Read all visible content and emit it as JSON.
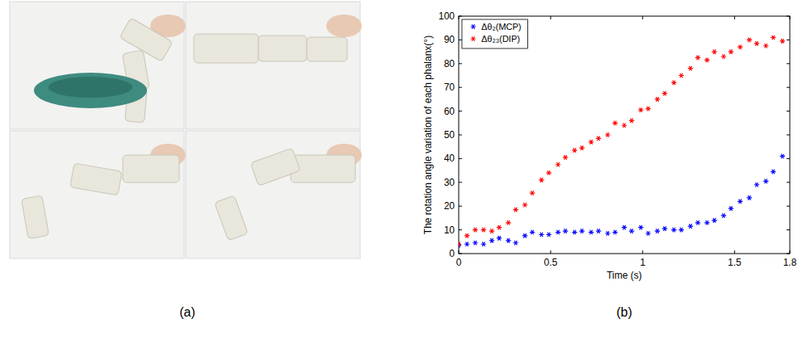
{
  "panel_labels": [
    "(a)",
    "(b)"
  ],
  "chart_data": {
    "type": "scatter",
    "x_label": "Time (s)",
    "y_label": "The rotation angle variation of each phalanx(°)",
    "x": [
      0,
      0.045,
      0.09,
      0.135,
      0.18,
      0.22,
      0.27,
      0.31,
      0.36,
      0.4,
      0.45,
      0.49,
      0.54,
      0.58,
      0.63,
      0.67,
      0.72,
      0.76,
      0.81,
      0.85,
      0.9,
      0.94,
      0.99,
      1.03,
      1.08,
      1.12,
      1.17,
      1.21,
      1.26,
      1.3,
      1.35,
      1.39,
      1.44,
      1.48,
      1.53,
      1.58,
      1.62,
      1.67,
      1.71,
      1.76
    ],
    "series": [
      {
        "name": "Δθ₂(MCP)",
        "color": "#0000ff",
        "marker": "asterisk",
        "values": [
          3.5,
          4,
          4.5,
          4,
          5.5,
          6.5,
          5.5,
          4.5,
          7.5,
          9,
          8,
          8,
          9,
          9.5,
          9,
          9.5,
          9,
          9.5,
          8.5,
          9,
          11,
          9.5,
          11,
          8.5,
          9.5,
          10.5,
          10,
          10,
          11.5,
          13,
          13,
          14,
          16,
          19,
          22,
          23.5,
          29,
          30.5,
          34.5,
          41
        ]
      },
      {
        "name": "Δθ₂₃(DIP)",
        "color": "#ff0000",
        "marker": "asterisk",
        "values": [
          4,
          7.5,
          10,
          10,
          9.5,
          11,
          13,
          18.5,
          20.5,
          25.5,
          31,
          34,
          37.5,
          40.5,
          43.5,
          44.5,
          47,
          48.5,
          50,
          55,
          54,
          56,
          60.5,
          61,
          65,
          67.5,
          72,
          75,
          78,
          82.5,
          81.5,
          85,
          83,
          85,
          87,
          90,
          88.5,
          87.5,
          91,
          89.5
        ]
      }
    ],
    "xlim": [
      0,
      1.8
    ],
    "xticks": [
      0,
      0.5,
      1,
      1.5,
      1.8
    ],
    "ylim": [
      0,
      100
    ],
    "yticks": [
      0,
      10,
      20,
      30,
      40,
      50,
      60,
      70,
      80,
      90,
      100
    ],
    "grid": false,
    "legend": "top-left"
  }
}
